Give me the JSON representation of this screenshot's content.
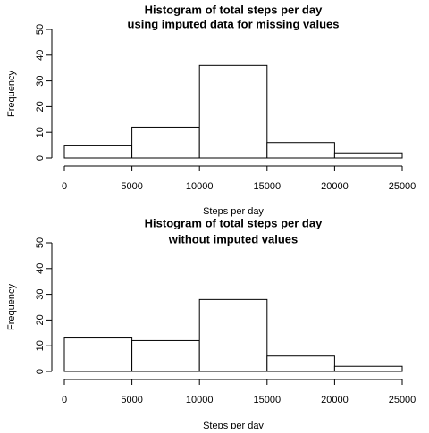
{
  "chart_data": [
    {
      "type": "histogram",
      "title": [
        "Histogram of total steps per day",
        "using imputed data for missing values"
      ],
      "xlabel": "Steps per day",
      "ylabel": "Frequency",
      "bins": [
        0,
        5000,
        10000,
        15000,
        20000,
        25000
      ],
      "values": [
        5,
        12,
        36,
        6,
        2
      ],
      "xlim": [
        0,
        25000
      ],
      "ylim": [
        0,
        50
      ],
      "xticks": [
        "0",
        "5000",
        "10000",
        "15000",
        "20000",
        "25000"
      ],
      "yticks": [
        "0",
        "10",
        "20",
        "30",
        "40",
        "50"
      ]
    },
    {
      "type": "histogram",
      "title": [
        "Histogram of total steps per day",
        "without imputed values"
      ],
      "xlabel": "Steps per day",
      "ylabel": "Frequency",
      "bins": [
        0,
        5000,
        10000,
        15000,
        20000,
        25000
      ],
      "values": [
        13,
        12,
        28,
        6,
        2
      ],
      "xlim": [
        0,
        25000
      ],
      "ylim": [
        0,
        50
      ],
      "xticks": [
        "0",
        "5000",
        "10000",
        "15000",
        "20000",
        "25000"
      ],
      "yticks": [
        "0",
        "10",
        "20",
        "30",
        "40",
        "50"
      ]
    }
  ]
}
